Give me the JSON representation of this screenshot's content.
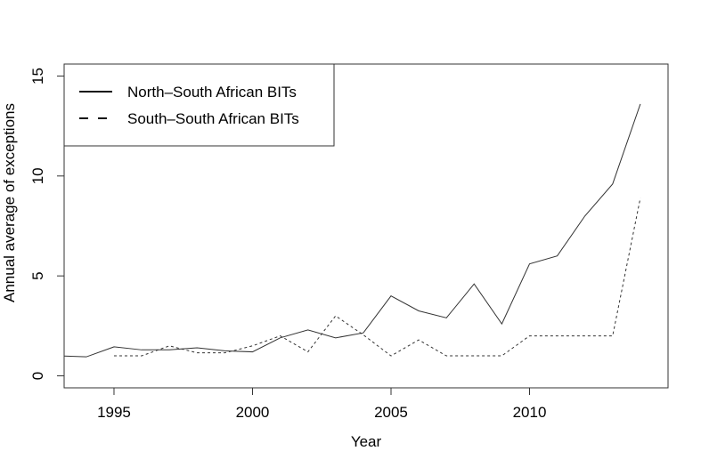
{
  "chart_data": {
    "type": "line",
    "title": "",
    "xlabel": "Year",
    "ylabel": "Annual average of exceptions",
    "xlim": [
      1993.2,
      2015.0
    ],
    "ylim": [
      -0.6,
      15.6
    ],
    "xticks": [
      1995,
      2000,
      2005,
      2010
    ],
    "yticks": [
      0,
      5,
      10,
      15
    ],
    "grid": false,
    "legend_position": "top-left",
    "series": [
      {
        "name": "North–South African BITs",
        "line_style": "solid",
        "color": "#333333",
        "x": [
          1993,
          1994,
          1995,
          1996,
          1997,
          1998,
          1999,
          2000,
          2001,
          2002,
          2003,
          2004,
          2005,
          2006,
          2007,
          2008,
          2009,
          2010,
          2011,
          2012,
          2013,
          2014
        ],
        "y": [
          1.0,
          0.95,
          1.45,
          1.3,
          1.3,
          1.4,
          1.25,
          1.2,
          1.9,
          2.3,
          1.9,
          2.15,
          4.0,
          3.25,
          2.9,
          4.6,
          2.6,
          5.6,
          6.0,
          8.0,
          9.6,
          13.6
        ]
      },
      {
        "name": "South–South African BITs",
        "line_style": "dashed",
        "color": "#333333",
        "x": [
          1995,
          1996,
          1997,
          1998,
          1999,
          2000,
          2001,
          2002,
          2003,
          2004,
          2005,
          2006,
          2007,
          2008,
          2009,
          2010,
          2011,
          2012,
          2013,
          2014
        ],
        "y": [
          1.0,
          1.0,
          1.5,
          1.15,
          1.15,
          1.5,
          2.0,
          1.2,
          3.0,
          2.05,
          1.0,
          1.8,
          1.0,
          1.0,
          1.0,
          2.0,
          2.0,
          2.0,
          2.0,
          8.9
        ]
      }
    ]
  }
}
